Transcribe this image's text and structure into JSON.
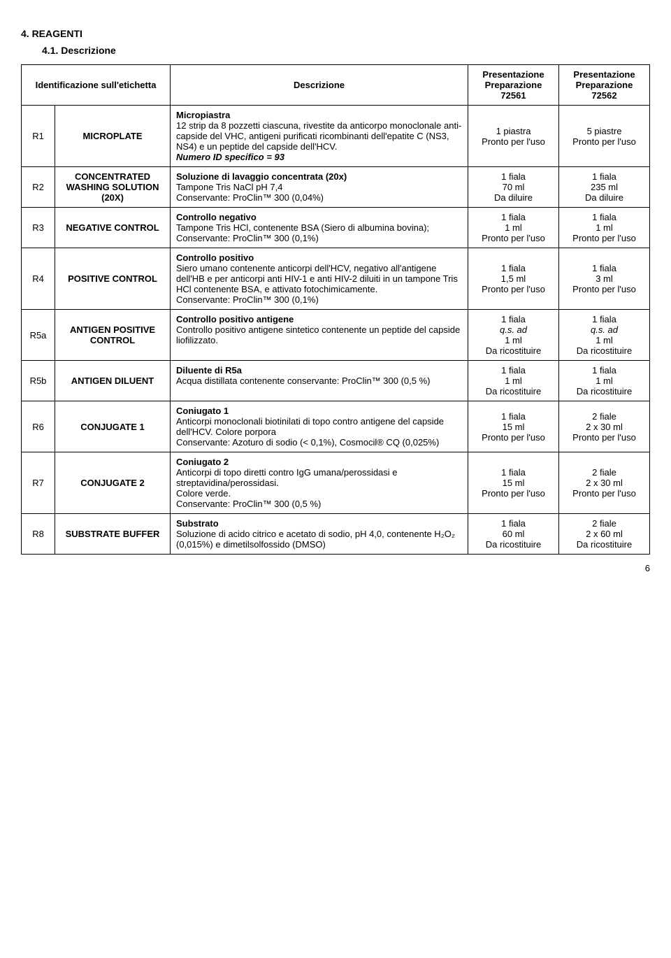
{
  "section": {
    "title": "4. REAGENTI",
    "subtitle": "4.1. Descrizione"
  },
  "headers": {
    "id": "Identificazione sull'etichetta",
    "desc": "Descrizione",
    "pres1": "Presentazione Preparazione 72561",
    "pres2": "Presentazione Preparazione 72562"
  },
  "rows": [
    {
      "code": "R1",
      "label": "MICROPLATE",
      "desc_title": "Micropiastra",
      "desc_body": "12 strip da 8 pozzetti ciascuna, rivestite da anticorpo monoclonale anti-capside del VHC, antigeni purificati ricombinanti dell'epatite C (NS3, NS4) e un peptide del capside dell'HCV.",
      "desc_note": "Numero ID specifico = 93",
      "p1_l1": "1 piastra",
      "p1_l2": "Pronto per l'uso",
      "p2_l1": "5 piastre",
      "p2_l2": "Pronto per l'uso"
    },
    {
      "code": "R2",
      "label": "CONCENTRATED WASHING SOLUTION (20X)",
      "desc_title": "Soluzione di lavaggio concentrata (20x)",
      "desc_body": "Tampone Tris NaCl pH 7,4\nConservante: ProClin™ 300 (0,04%)",
      "p1_l1": "1 fiala",
      "p1_l2": "70 ml",
      "p1_l3": "Da diluire",
      "p2_l1": "1 fiala",
      "p2_l2": "235 ml",
      "p2_l3": "Da diluire"
    },
    {
      "code": "R3",
      "label": "NEGATIVE CONTROL",
      "desc_title": "Controllo negativo",
      "desc_body": "Tampone Tris HCl, contenente BSA (Siero di albumina bovina);\nConservante: ProClin™ 300 (0,1%)",
      "p1_l1": "1 fiala",
      "p1_l2": "1 ml",
      "p1_l3": "Pronto per l'uso",
      "p2_l1": "1 fiala",
      "p2_l2": "1 ml",
      "p2_l3": "Pronto per l'uso"
    },
    {
      "code": "R4",
      "label": "POSITIVE CONTROL",
      "desc_title": "Controllo positivo",
      "desc_body": "Siero umano contenente anticorpi dell'HCV, negativo all'antigene dell'HB e per anticorpi anti HIV-1 e anti HIV-2 diluiti in un tampone Tris HCl contenente BSA, e attivato fotochimicamente.\nConservante: ProClin™ 300 (0,1%)",
      "p1_l1": "1 fiala",
      "p1_l2": "1,5 ml",
      "p1_l3": "Pronto per l'uso",
      "p2_l1": "1 fiala",
      "p2_l2": "3 ml",
      "p2_l3": "Pronto per l'uso"
    },
    {
      "code": "R5a",
      "label": "ANTIGEN POSITIVE CONTROL",
      "desc_title": "Controllo positivo antigene",
      "desc_body": "Controllo positivo antigene sintetico contenente un peptide del capside liofilizzato.",
      "p1_l1": "1 fiala",
      "p1_l2i": "q.s. ad",
      "p1_l3": "1 ml",
      "p1_l4": "Da ricostituire",
      "p2_l1": "1 fiala",
      "p2_l2i": "q.s. ad",
      "p2_l3": "1 ml",
      "p2_l4": "Da ricostituire"
    },
    {
      "code": "R5b",
      "label": "ANTIGEN DILUENT",
      "desc_title": "Diluente di R5a",
      "desc_body": "Acqua distillata contenente conservante: ProClin™ 300 (0,5 %)",
      "p1_l1": "1 fiala",
      "p1_l2": "1 ml",
      "p1_l3": "Da ricostituire",
      "p2_l1": "1 fiala",
      "p2_l2": "1 ml",
      "p2_l3": "Da ricostituire"
    },
    {
      "code": "R6",
      "label": "CONJUGATE 1",
      "desc_title": "Coniugato 1",
      "desc_body": "Anticorpi monoclonali biotinilati di topo contro antigene del capside dell'HCV. Colore porpora\nConservante: Azoturo di sodio (< 0,1%), Cosmocil® CQ (0,025%)",
      "p1_l1": "1 fiala",
      "p1_l2": "15 ml",
      "p1_l3": "Pronto per l'uso",
      "p2_l1": "2 fiale",
      "p2_l2": "2 x 30 ml",
      "p2_l3": "Pronto per l'uso"
    },
    {
      "code": "R7",
      "label": "CONJUGATE 2",
      "desc_title": "Coniugato 2",
      "desc_body": "Anticorpi di topo diretti contro IgG umana/perossidasi e streptavidina/perossidasi.\nColore verde.\nConservante: ProClin™ 300 (0,5 %)",
      "p1_l1": "1 fiala",
      "p1_l2": "15 ml",
      "p1_l3": "Pronto per l'uso",
      "p2_l1": "2 fiale",
      "p2_l2": "2 x 30 ml",
      "p2_l3": "Pronto per l'uso"
    },
    {
      "code": "R8",
      "label": "SUBSTRATE BUFFER",
      "desc_title": "Substrato",
      "desc_body": "Soluzione di acido citrico e acetato di sodio, pH 4,0, contenente H₂O₂ (0,015%) e dimetilsolfossido (DMSO)",
      "p1_l1": "1 fiala",
      "p1_l2": "60 ml",
      "p1_l3": "Da ricostituire",
      "p2_l1": "2 fiale",
      "p2_l2": "2 x 60 ml",
      "p2_l3": "Da ricostituire"
    }
  ],
  "page_number": "6"
}
